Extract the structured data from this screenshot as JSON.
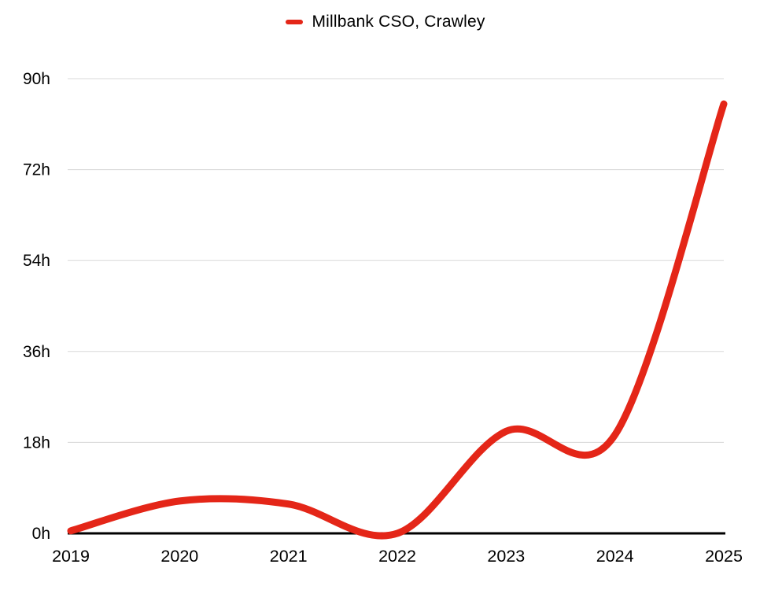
{
  "colors": {
    "background": "#ffffff",
    "grid": "#d8d8d8",
    "axis": "#000000",
    "text": "#000000",
    "series_red": "#e42618"
  },
  "chart_data": {
    "type": "line",
    "title": "",
    "curve": "smooth",
    "grid": "horizontal",
    "legend_position": "top-center",
    "x": [
      2019,
      2020,
      2021,
      2022,
      2023,
      2024,
      2025
    ],
    "x_tick_labels": [
      "2019",
      "2020",
      "2021",
      "2022",
      "2023",
      "2024",
      "2025"
    ],
    "y_ticks": [
      0,
      18,
      36,
      54,
      72,
      90
    ],
    "y_tick_labels": [
      "0h",
      "18h",
      "36h",
      "54h",
      "72h",
      "90h"
    ],
    "ylim": [
      0,
      90
    ],
    "ylabel_unit": "h",
    "series": [
      {
        "name": "Millbank CSO, Crawley",
        "color": "#e42618",
        "values": [
          0.5,
          6.4,
          5.8,
          0,
          20.2,
          19.5,
          85
        ]
      }
    ]
  }
}
